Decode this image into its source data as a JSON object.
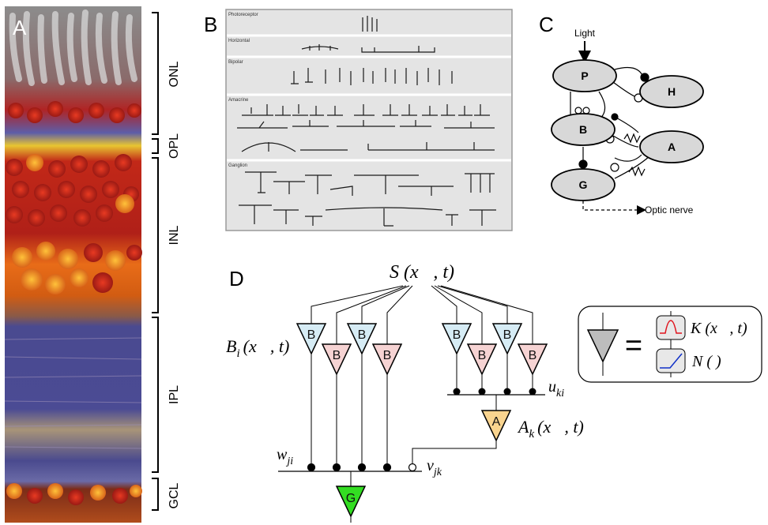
{
  "panels": {
    "a": {
      "letter": "A",
      "layers": [
        "ONL",
        "OPL",
        "INL",
        "IPL",
        "GCL"
      ]
    },
    "b": {
      "letter": "B",
      "sections": [
        "Photoreceptor",
        "Horizontal",
        "Bipolar",
        "Amacrine",
        "Ganglion"
      ]
    },
    "c": {
      "letter": "C",
      "light": "Light",
      "nodes": {
        "p": "P",
        "h": "H",
        "b": "B",
        "a": "A",
        "g": "G"
      },
      "optic_nerve": "Optic nerve"
    },
    "d": {
      "letter": "D",
      "stimulus": "S (x⃗, t)",
      "bipolar_label": "B",
      "bipolar_eq": "B",
      "bipolar_sub": "i",
      "bipolar_args": "(x⃗, t)",
      "amacrine_label": "A",
      "amacrine_eq": "A",
      "amacrine_sub": "k",
      "amacrine_args": "(x⃗, t)",
      "ganglion_label": "G",
      "weights": {
        "u": "u",
        "u_sub": "ki",
        "w": "w",
        "w_sub": "ji",
        "v": "v",
        "v_sub": "jk"
      },
      "legend": {
        "equals": "=",
        "kernel": "K (x⃗, t)",
        "nonlinearity": "N ( )"
      }
    }
  },
  "colors": {
    "bipolar_blue": "#d6ecf5",
    "bipolar_pink": "#f6d3d3",
    "amacrine": "#f9d48f",
    "ganglion": "#33dd22",
    "node_gray": "#d8d8d8"
  }
}
